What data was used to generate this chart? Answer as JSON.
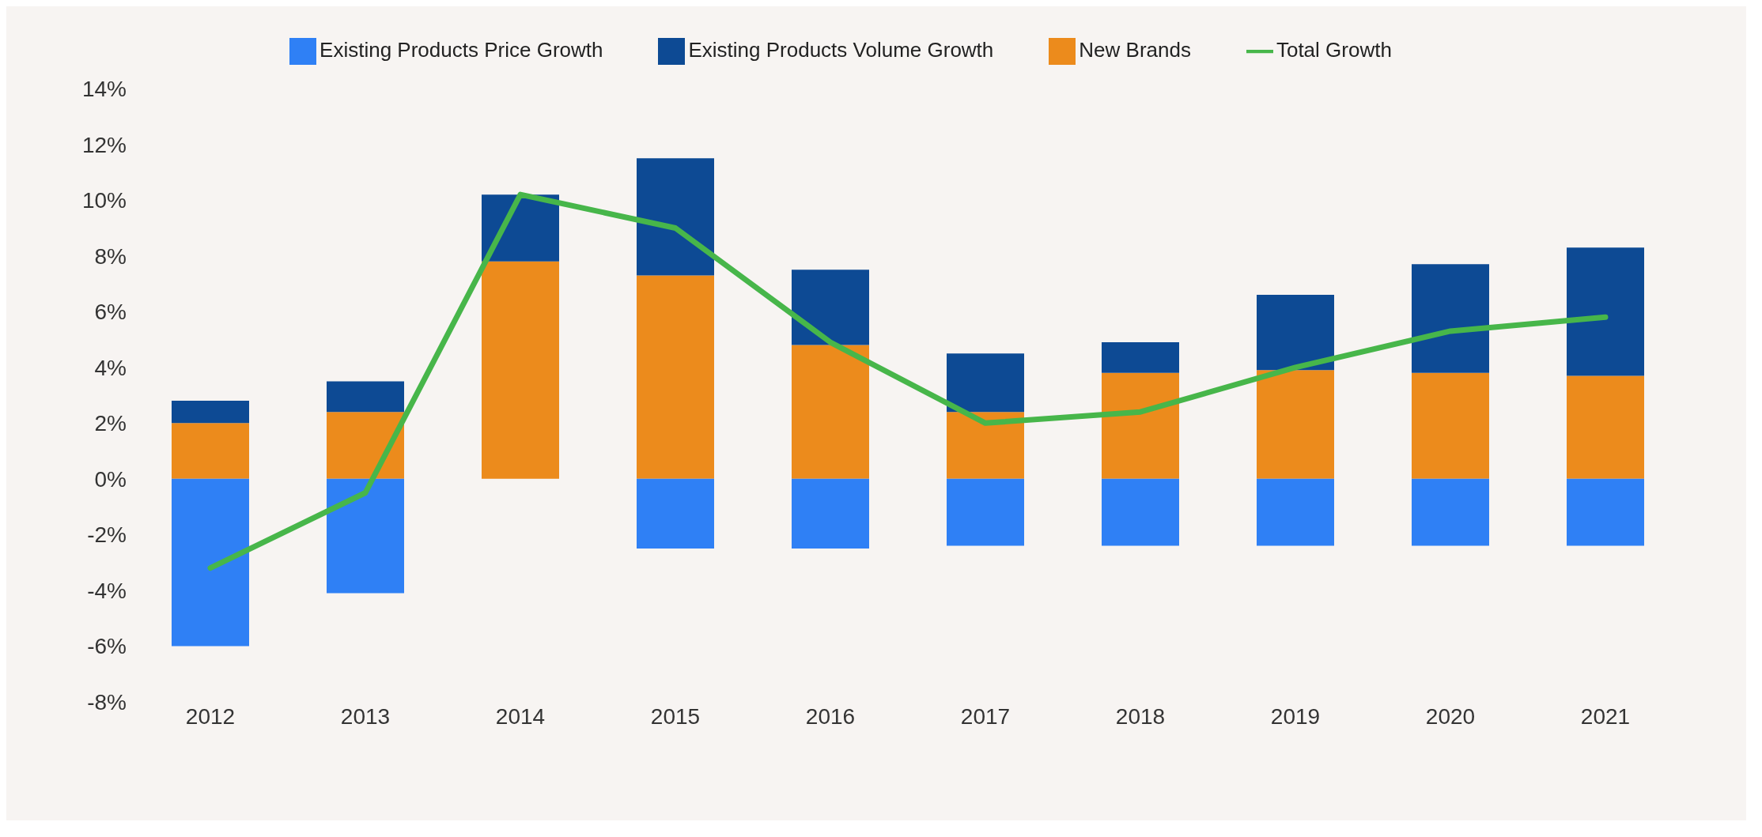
{
  "chart_data": {
    "type": "bar",
    "stacked": true,
    "categories": [
      "2012",
      "2013",
      "2014",
      "2015",
      "2016",
      "2017",
      "2018",
      "2019",
      "2020",
      "2021"
    ],
    "series": [
      {
        "name": "New Brands",
        "color": "#ec8b1c",
        "values": [
          2.0,
          2.4,
          7.8,
          7.3,
          4.8,
          2.4,
          3.8,
          3.9,
          3.8,
          3.7
        ]
      },
      {
        "name": "Existing Products Volume Growth",
        "color": "#0d4a94",
        "values": [
          0.8,
          1.1,
          2.4,
          4.2,
          2.7,
          2.1,
          1.1,
          2.7,
          3.9,
          4.6
        ]
      },
      {
        "name": "Existing Products Price Growth",
        "color": "#2f80f5",
        "values": [
          -6.0,
          -4.1,
          null,
          -2.5,
          -2.5,
          -2.4,
          -2.4,
          -2.4,
          -2.4,
          -2.4
        ]
      },
      {
        "name": "Total Growth",
        "type": "line",
        "color": "#47b64a",
        "values": [
          -3.2,
          -0.5,
          10.2,
          9.0,
          4.9,
          2.0,
          2.4,
          4.0,
          5.3,
          5.8
        ]
      }
    ],
    "ylim": [
      -8,
      14
    ],
    "yticks": [
      {
        "value": -8,
        "label": "-8%"
      },
      {
        "value": -6,
        "label": "-6%"
      },
      {
        "value": -4,
        "label": "-4%"
      },
      {
        "value": -2,
        "label": "-2%"
      },
      {
        "value": 0,
        "label": "0%"
      },
      {
        "value": 2,
        "label": "2%"
      },
      {
        "value": 4,
        "label": "4%"
      },
      {
        "value": 6,
        "label": "6%"
      },
      {
        "value": 8,
        "label": "8%"
      },
      {
        "value": 10,
        "label": "10%"
      },
      {
        "value": 12,
        "label": "12%"
      },
      {
        "value": 14,
        "label": "14%"
      }
    ],
    "grid": false,
    "legend": "top",
    "marker": "none",
    "line_style": "solid"
  }
}
